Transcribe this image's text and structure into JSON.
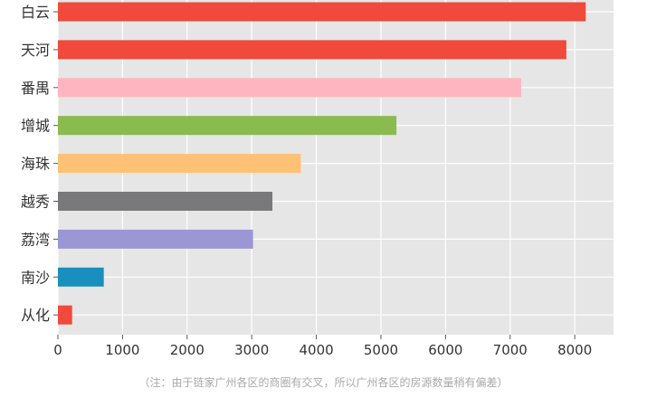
{
  "chart_data": {
    "type": "bar",
    "orientation": "horizontal",
    "categories": [
      "白云",
      "天河",
      "番禺",
      "增城",
      "海珠",
      "越秀",
      "荔湾",
      "南沙",
      "从化"
    ],
    "values": [
      8170,
      7870,
      7170,
      5240,
      3760,
      3320,
      3020,
      710,
      220
    ],
    "colors": [
      "#ef4a3b",
      "#ef4a3b",
      "#ffb5bf",
      "#8bba4f",
      "#ffc175",
      "#79797b",
      "#9b96d4",
      "#198fbd",
      "#ef4a3b"
    ],
    "xlim": [
      0,
      8600
    ],
    "xticks": [
      0,
      1000,
      2000,
      3000,
      4000,
      5000,
      6000,
      7000,
      8000
    ],
    "grid": true,
    "background": "#e6e6e6",
    "title": "",
    "xlabel": "",
    "ylabel": ""
  },
  "footnote": "（注：由于链家广州各区的商圈有交叉，所以广州各区的房源数量稍有偏差）"
}
